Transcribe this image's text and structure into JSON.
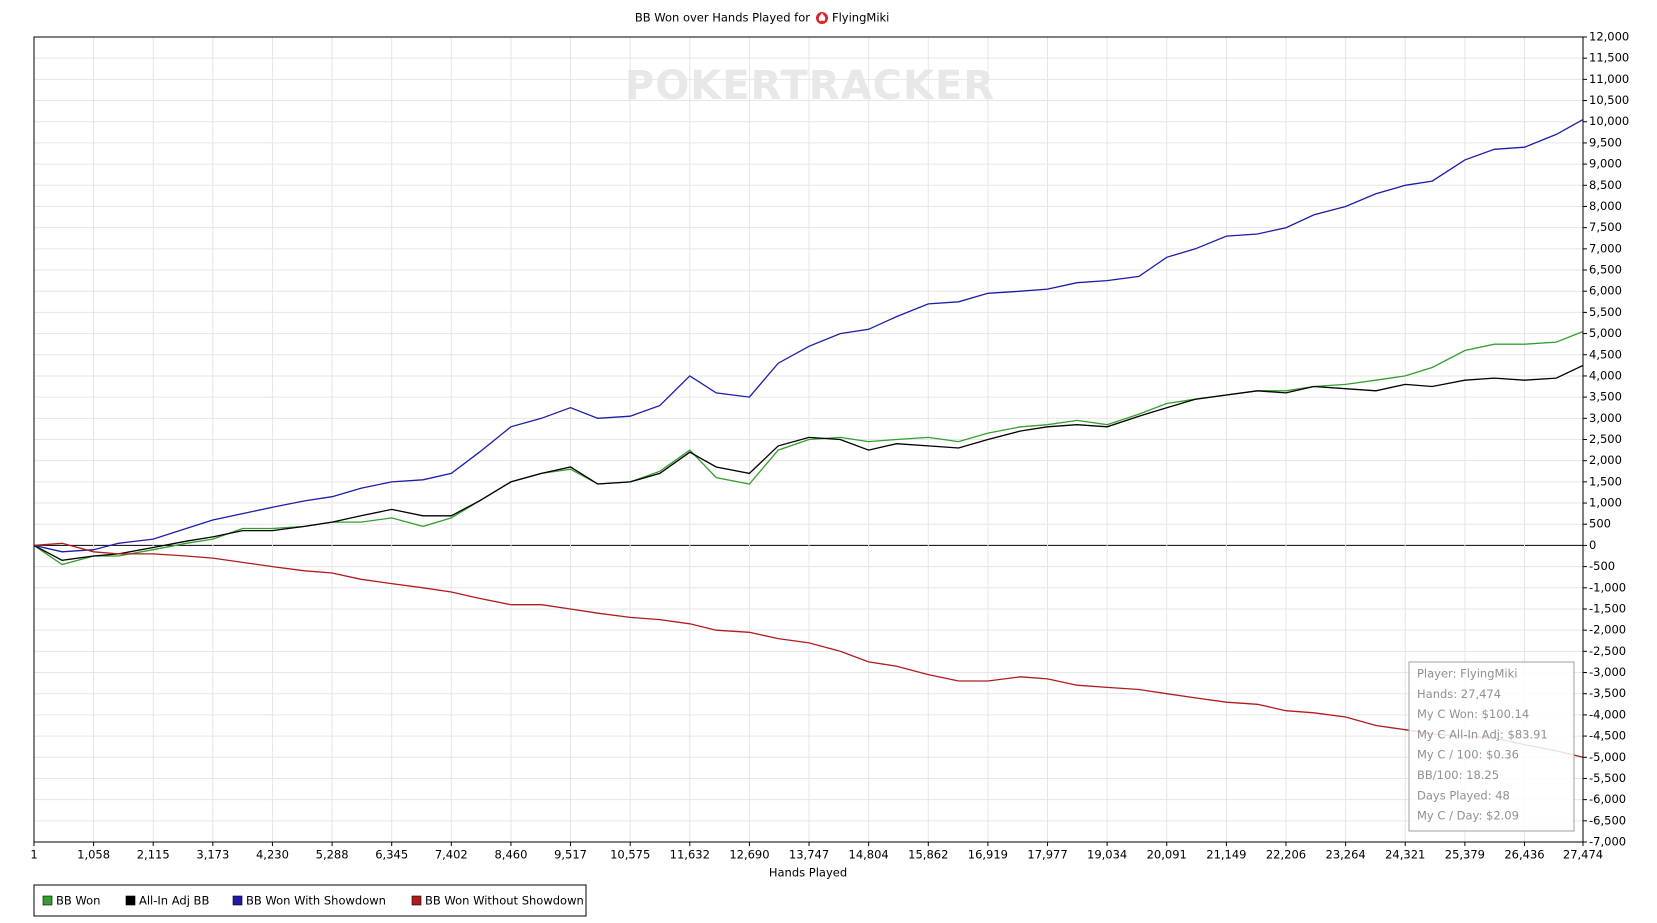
{
  "chart_data": {
    "type": "line",
    "title": "BB Won over Hands Played for",
    "player": "FlyingMiki",
    "watermark": "POKERTRACKER",
    "xlabel": "Hands Played",
    "xlim": [
      1,
      27474
    ],
    "ylim": [
      -7000,
      12000
    ],
    "grid": true,
    "legend": "bottom-left",
    "xticks": [
      1,
      {
        "value": 1058,
        "label": "1,058"
      },
      {
        "value": 2115,
        "label": "2,115"
      },
      {
        "value": 3173,
        "label": "3,173"
      },
      {
        "value": 4230,
        "label": "4,230"
      },
      {
        "value": 5288,
        "label": "5,288"
      },
      {
        "value": 6345,
        "label": "6,345"
      },
      {
        "value": 7402,
        "label": "7,402"
      },
      {
        "value": 8460,
        "label": "8,460"
      },
      {
        "value": 9517,
        "label": "9,517"
      },
      {
        "value": 10575,
        "label": "10,575"
      },
      {
        "value": 11632,
        "label": "11,632"
      },
      {
        "value": 12690,
        "label": "12,690"
      },
      {
        "value": 13747,
        "label": "13,747"
      },
      {
        "value": 14804,
        "label": "14,804"
      },
      {
        "value": 15862,
        "label": "15,862"
      },
      {
        "value": 16919,
        "label": "16,919"
      },
      {
        "value": 17977,
        "label": "17,977"
      },
      {
        "value": 19034,
        "label": "19,034"
      },
      {
        "value": 20091,
        "label": "20,091"
      },
      {
        "value": 21149,
        "label": "21,149"
      },
      {
        "value": 22206,
        "label": "22,206"
      },
      {
        "value": 23264,
        "label": "23,264"
      },
      {
        "value": 24321,
        "label": "24,321"
      },
      {
        "value": 25379,
        "label": "25,379"
      },
      {
        "value": 26436,
        "label": "26,436"
      },
      {
        "value": 27474,
        "label": "27,474"
      }
    ],
    "yticks": [
      {
        "value": -7000,
        "label": "-7,000"
      },
      {
        "value": -6500,
        "label": "-6,500"
      },
      {
        "value": -6000,
        "label": "-6,000"
      },
      {
        "value": -5500,
        "label": "-5,500"
      },
      {
        "value": -5000,
        "label": "-5,000"
      },
      {
        "value": -4500,
        "label": "-4,500"
      },
      {
        "value": -4000,
        "label": "-4,000"
      },
      {
        "value": -3500,
        "label": "-3,500"
      },
      {
        "value": -3000,
        "label": "-3,000"
      },
      {
        "value": -2500,
        "label": "-2,500"
      },
      {
        "value": -2000,
        "label": "-2,000"
      },
      {
        "value": -1500,
        "label": "-1,500"
      },
      {
        "value": -1000,
        "label": "-1,000"
      },
      -500,
      0,
      500,
      {
        "value": 1000,
        "label": "1,000"
      },
      {
        "value": 1500,
        "label": "1,500"
      },
      {
        "value": 2000,
        "label": "2,000"
      },
      {
        "value": 2500,
        "label": "2,500"
      },
      {
        "value": 3000,
        "label": "3,000"
      },
      {
        "value": 3500,
        "label": "3,500"
      },
      {
        "value": 4000,
        "label": "4,000"
      },
      {
        "value": 4500,
        "label": "4,500"
      },
      {
        "value": 5000,
        "label": "5,000"
      },
      {
        "value": 5500,
        "label": "5,500"
      },
      {
        "value": 6000,
        "label": "6,000"
      },
      {
        "value": 6500,
        "label": "6,500"
      },
      {
        "value": 7000,
        "label": "7,000"
      },
      {
        "value": 7500,
        "label": "7,500"
      },
      {
        "value": 8000,
        "label": "8,000"
      },
      {
        "value": 8500,
        "label": "8,500"
      },
      {
        "value": 9000,
        "label": "9,000"
      },
      {
        "value": 9500,
        "label": "9,500"
      },
      {
        "value": 10000,
        "label": "10,000"
      },
      {
        "value": 10500,
        "label": "10,500"
      },
      {
        "value": 11000,
        "label": "11,000"
      },
      {
        "value": 11500,
        "label": "11,500"
      },
      {
        "value": 12000,
        "label": "12,000"
      }
    ],
    "x": [
      1,
      500,
      1058,
      1500,
      2115,
      2700,
      3173,
      3700,
      4230,
      4800,
      5288,
      5800,
      6345,
      6900,
      7402,
      7900,
      8460,
      9000,
      9517,
      10000,
      10575,
      11100,
      11632,
      12100,
      12690,
      13200,
      13747,
      14300,
      14804,
      15300,
      15862,
      16400,
      16919,
      17500,
      17977,
      18500,
      19034,
      19600,
      20091,
      20600,
      21149,
      21700,
      22206,
      22700,
      23264,
      23800,
      24321,
      24800,
      25379,
      25900,
      26436,
      27000,
      27474
    ],
    "series": [
      {
        "name": "BB Won",
        "color": "#33a02c",
        "values": [
          0,
          -450,
          -250,
          -250,
          -100,
          50,
          150,
          400,
          400,
          450,
          550,
          550,
          650,
          450,
          650,
          1050,
          1500,
          1700,
          1800,
          1450,
          1500,
          1750,
          2250,
          1600,
          1450,
          2250,
          2500,
          2550,
          2450,
          2500,
          2550,
          2450,
          2650,
          2800,
          2850,
          2950,
          2850,
          3100,
          3350,
          3450,
          3550,
          3650,
          3650,
          3750,
          3800,
          3900,
          4000,
          4200,
          4600,
          4750,
          4750,
          4800,
          5050
        ]
      },
      {
        "name": "All-In Adj BB",
        "color": "#000000",
        "values": [
          0,
          -350,
          -250,
          -200,
          -50,
          100,
          200,
          350,
          350,
          450,
          550,
          700,
          850,
          700,
          700,
          1050,
          1500,
          1700,
          1850,
          1450,
          1500,
          1700,
          2200,
          1850,
          1700,
          2350,
          2550,
          2500,
          2250,
          2400,
          2350,
          2300,
          2500,
          2700,
          2800,
          2850,
          2800,
          3050,
          3250,
          3450,
          3550,
          3650,
          3600,
          3750,
          3700,
          3650,
          3800,
          3750,
          3900,
          3950,
          3900,
          3950,
          4250
        ]
      },
      {
        "name": "BB Won With Showdown",
        "color": "#1c1ca8",
        "values": [
          0,
          -150,
          -100,
          50,
          150,
          400,
          600,
          750,
          900,
          1050,
          1150,
          1350,
          1500,
          1550,
          1700,
          2200,
          2800,
          3000,
          3250,
          3000,
          3050,
          3300,
          4000,
          3600,
          3500,
          4300,
          4700,
          5000,
          5100,
          5400,
          5700,
          5750,
          5950,
          6000,
          6050,
          6200,
          6250,
          6350,
          6800,
          7000,
          7300,
          7350,
          7500,
          7800,
          8000,
          8300,
          8500,
          8600,
          9100,
          9350,
          9400,
          9700,
          10050
        ]
      },
      {
        "name": "BB Won Without Showdown",
        "color": "#b01c1c",
        "values": [
          0,
          50,
          -150,
          -200,
          -200,
          -250,
          -300,
          -400,
          -500,
          -600,
          -650,
          -800,
          -900,
          -1000,
          -1100,
          -1250,
          -1400,
          -1400,
          -1500,
          -1600,
          -1700,
          -1750,
          -1850,
          -2000,
          -2050,
          -2200,
          -2300,
          -2500,
          -2750,
          -2850,
          -3050,
          -3200,
          -3200,
          -3100,
          -3150,
          -3300,
          -3350,
          -3400,
          -3500,
          -3600,
          -3700,
          -3750,
          -3900,
          -3950,
          -4050,
          -4250,
          -4350,
          -4450,
          -4500,
          -4550,
          -4700,
          -4850,
          -5000
        ]
      }
    ],
    "annotations": [
      "Player: FlyingMiki",
      "Hands: 27,474",
      "My C Won: $100.14",
      "My C All-In Adj: $83.91",
      "My C / 100: $0.36",
      "BB/100: 18.25",
      "Days Played: 48",
      "My C / Day: $2.09"
    ]
  }
}
